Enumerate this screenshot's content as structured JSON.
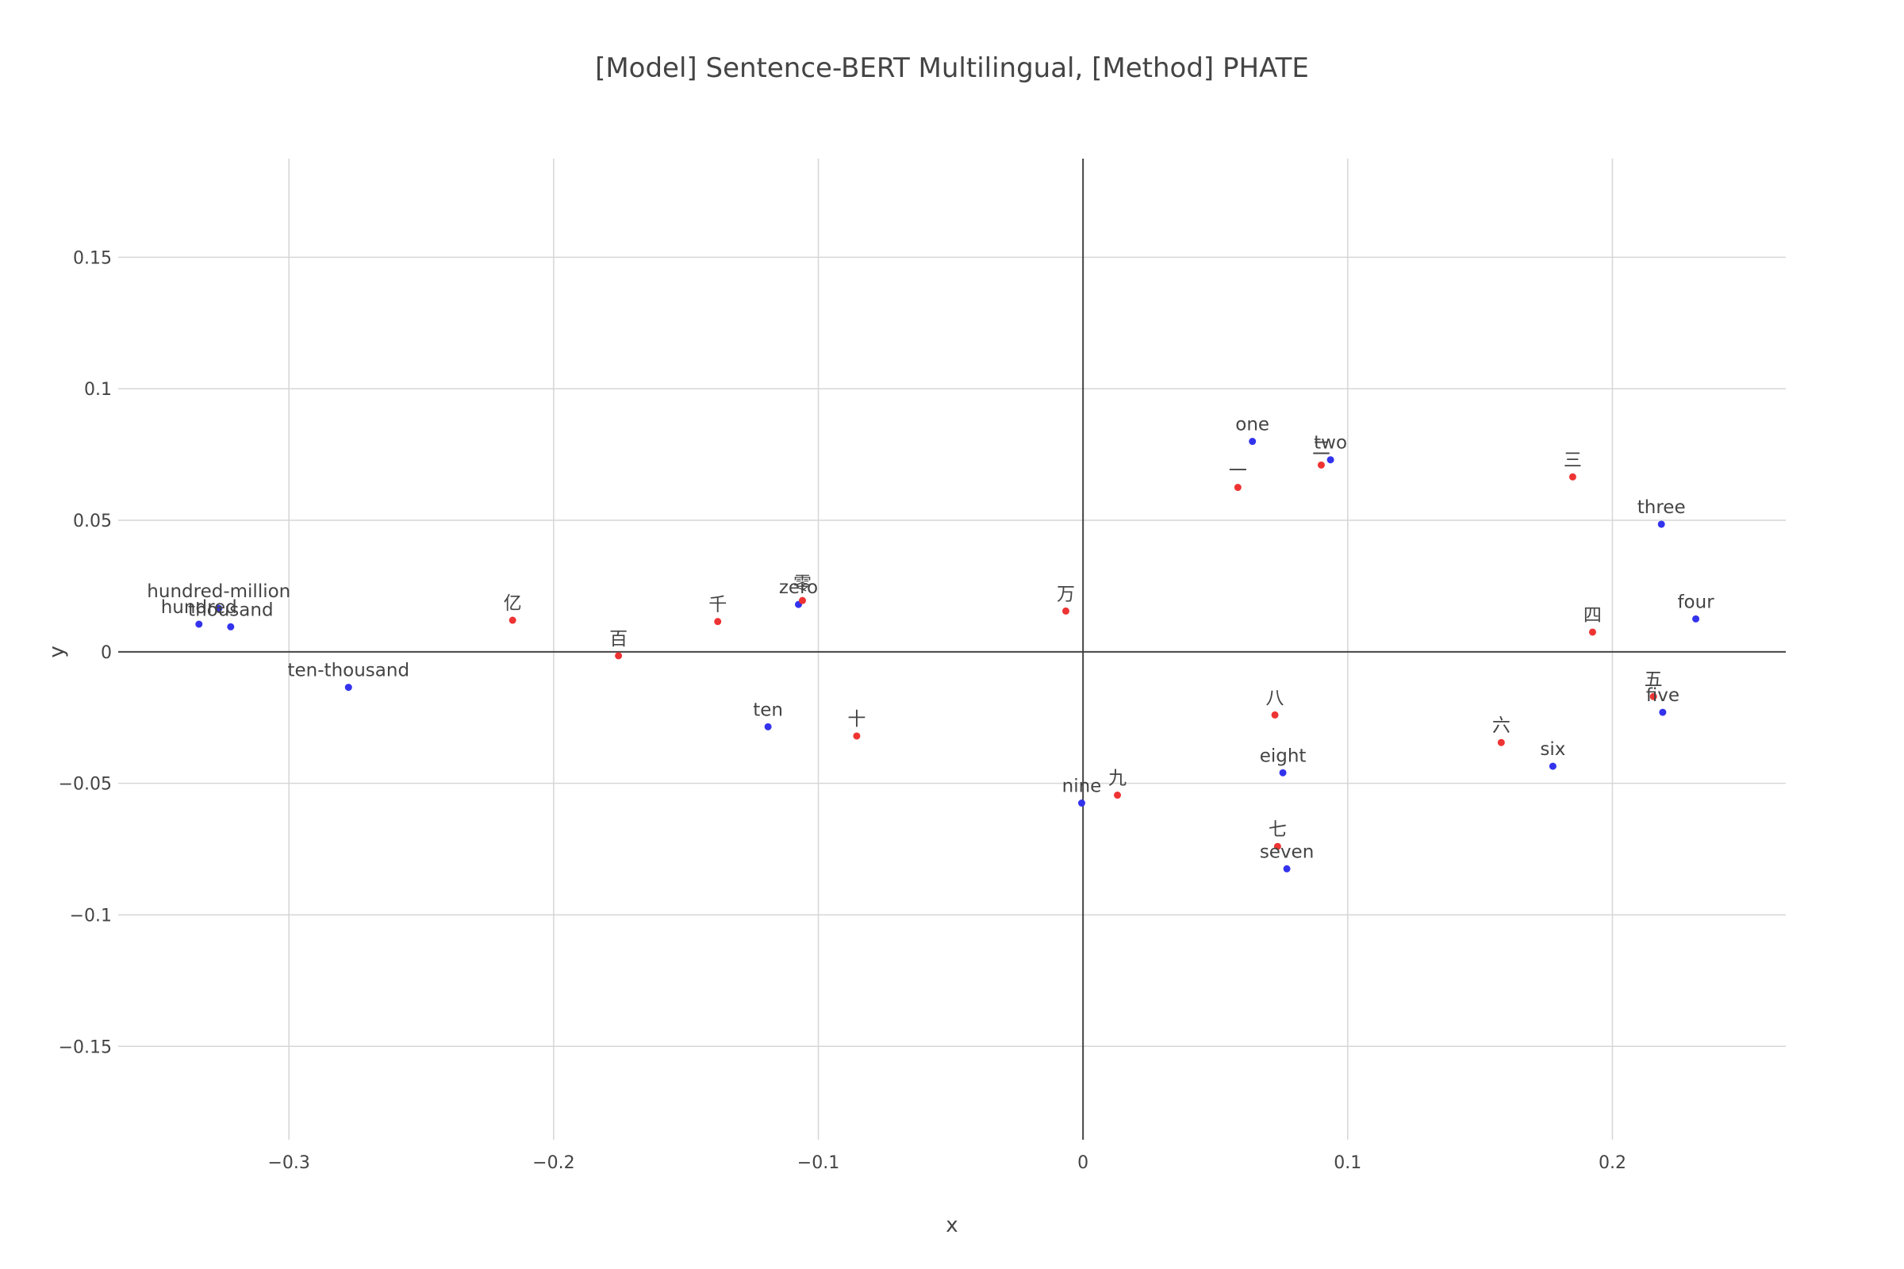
{
  "chart_data": {
    "type": "scatter",
    "title": "[Model] Sentence-BERT Multilingual, [Method] PHATE",
    "xlabel": "x",
    "ylabel": "y",
    "xlim": [
      -0.3645,
      0.2655
    ],
    "ylim": [
      -0.1855,
      0.1875
    ],
    "x_ticks": [
      -0.3,
      -0.2,
      -0.1,
      0,
      0.1,
      0.2
    ],
    "x_tick_labels": [
      "−0.3",
      "−0.2",
      "−0.1",
      "0",
      "0.1",
      "0.2"
    ],
    "y_ticks": [
      -0.15,
      -0.1,
      -0.05,
      0,
      0.05,
      0.1,
      0.15
    ],
    "y_tick_labels": [
      "−0.15",
      "−0.1",
      "−0.05",
      "0",
      "0.05",
      "0.1",
      "0.15"
    ],
    "grid": true,
    "legend": "none",
    "colors": {
      "english": "#3333ee",
      "chinese": "#ee3333",
      "grid": "#d6d6d6",
      "zero_line": "#444444"
    },
    "points": [
      {
        "label": "one",
        "x": 0.064,
        "y": 0.08,
        "color": "#3333ee"
      },
      {
        "label": "two",
        "x": 0.0935,
        "y": 0.073,
        "color": "#3333ee"
      },
      {
        "label": "three",
        "x": 0.2185,
        "y": 0.0485,
        "color": "#3333ee"
      },
      {
        "label": "four",
        "x": 0.2315,
        "y": 0.0125,
        "color": "#3333ee"
      },
      {
        "label": "five",
        "x": 0.219,
        "y": -0.023,
        "color": "#3333ee"
      },
      {
        "label": "six",
        "x": 0.1775,
        "y": -0.0435,
        "color": "#3333ee"
      },
      {
        "label": "seven",
        "x": 0.077,
        "y": -0.0825,
        "color": "#3333ee"
      },
      {
        "label": "eight",
        "x": 0.0755,
        "y": -0.046,
        "color": "#3333ee"
      },
      {
        "label": "nine",
        "x": -0.0005,
        "y": -0.0575,
        "color": "#3333ee"
      },
      {
        "label": "ten",
        "x": -0.119,
        "y": -0.0285,
        "color": "#3333ee"
      },
      {
        "label": "zero",
        "x": -0.1075,
        "y": 0.018,
        "color": "#3333ee"
      },
      {
        "label": "hundred-million",
        "x": -0.3265,
        "y": 0.0165,
        "color": "#3333ee"
      },
      {
        "label": "hundred",
        "x": -0.334,
        "y": 0.0105,
        "color": "#3333ee"
      },
      {
        "label": "thousand",
        "x": -0.322,
        "y": 0.0095,
        "color": "#3333ee"
      },
      {
        "label": "ten-thousand",
        "x": -0.2775,
        "y": -0.0135,
        "color": "#3333ee"
      },
      {
        "label": "一",
        "x": 0.0585,
        "y": 0.0625,
        "color": "#ee3333"
      },
      {
        "label": "二",
        "x": 0.09,
        "y": 0.071,
        "color": "#ee3333"
      },
      {
        "label": "三",
        "x": 0.185,
        "y": 0.0665,
        "color": "#ee3333"
      },
      {
        "label": "四",
        "x": 0.1925,
        "y": 0.0075,
        "color": "#ee3333"
      },
      {
        "label": "五",
        "x": 0.2155,
        "y": -0.017,
        "color": "#ee3333"
      },
      {
        "label": "六",
        "x": 0.158,
        "y": -0.0345,
        "color": "#ee3333"
      },
      {
        "label": "七",
        "x": 0.0735,
        "y": -0.074,
        "color": "#ee3333"
      },
      {
        "label": "八",
        "x": 0.0725,
        "y": -0.024,
        "color": "#ee3333"
      },
      {
        "label": "九",
        "x": 0.013,
        "y": -0.0545,
        "color": "#ee3333"
      },
      {
        "label": "十",
        "x": -0.0855,
        "y": -0.032,
        "color": "#ee3333"
      },
      {
        "label": "零",
        "x": -0.106,
        "y": 0.0195,
        "color": "#ee3333"
      },
      {
        "label": "亿",
        "x": -0.2155,
        "y": 0.012,
        "color": "#ee3333"
      },
      {
        "label": "百",
        "x": -0.1755,
        "y": -0.0015,
        "color": "#ee3333"
      },
      {
        "label": "千",
        "x": -0.138,
        "y": 0.0115,
        "color": "#ee3333"
      },
      {
        "label": "万",
        "x": -0.0065,
        "y": 0.0155,
        "color": "#ee3333"
      }
    ]
  }
}
